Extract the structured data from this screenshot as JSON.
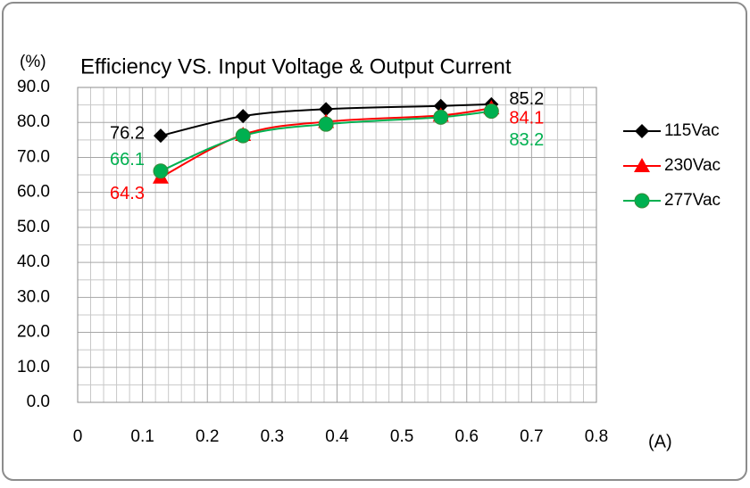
{
  "chart_data": {
    "type": "line",
    "title": "Efficiency VS. Input Voltage & Output Current",
    "y_label": "(%)",
    "x_label": "(A)",
    "x": [
      0.128,
      0.255,
      0.383,
      0.56,
      0.638
    ],
    "series": [
      {
        "name": "115Vac",
        "color": "#000000",
        "marker": "diamond",
        "values": [
          76.2,
          81.8,
          83.8,
          84.7,
          85.2
        ],
        "value_labels": [
          "76.2",
          null,
          null,
          null,
          "85.2"
        ]
      },
      {
        "name": "230Vac",
        "color": "#ff0000",
        "marker": "triangle",
        "values": [
          64.3,
          76.5,
          80.2,
          82.0,
          84.1
        ],
        "value_labels": [
          "64.3",
          null,
          null,
          null,
          "84.1"
        ]
      },
      {
        "name": "277Vac",
        "color": "#00b050",
        "marker": "circle",
        "values": [
          66.1,
          76.2,
          79.5,
          81.5,
          83.2
        ],
        "value_labels": [
          "66.1",
          null,
          null,
          null,
          "83.2"
        ]
      }
    ],
    "xlim": [
      0,
      0.8
    ],
    "xticks": [
      0,
      0.1,
      0.2,
      0.3,
      0.4,
      0.5,
      0.6,
      0.7,
      0.8
    ],
    "ylim": [
      0,
      90
    ],
    "yticks": [
      {
        "value": 0,
        "label": "0.0"
      },
      {
        "value": 10,
        "label": "10.0"
      },
      {
        "value": 20,
        "label": "20.0"
      },
      {
        "value": 30,
        "label": "30.0"
      },
      {
        "value": 40,
        "label": "40.0"
      },
      {
        "value": 50,
        "label": "50.0"
      },
      {
        "value": 60,
        "label": "60.0"
      },
      {
        "value": 70,
        "label": "70.0"
      },
      {
        "value": 80,
        "label": "80.0"
      },
      {
        "value": 90,
        "label": "90.0"
      }
    ],
    "grid": true,
    "legend": "right"
  }
}
